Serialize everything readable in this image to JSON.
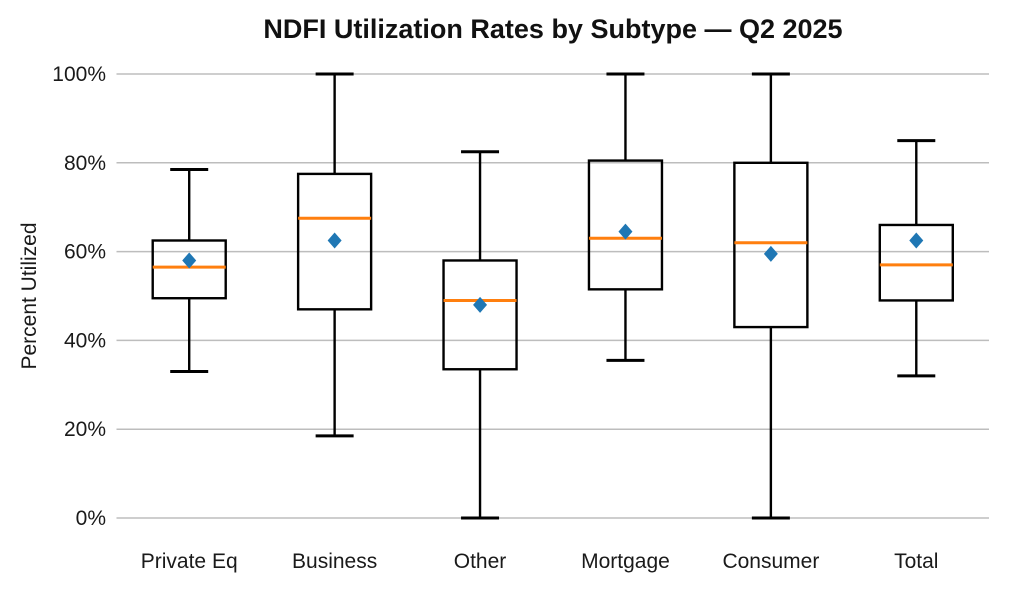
{
  "chart_data": {
    "type": "box",
    "title": "NDFI Utilization Rates by Subtype — Q2 2025",
    "xlabel": "",
    "ylabel": "Percent Utilized",
    "categories": [
      "Private Eq",
      "Business",
      "Other",
      "Mortgage",
      "Consumer",
      "Total"
    ],
    "series": [
      {
        "name": "Private Eq",
        "whisker_low": 33,
        "q1": 49.5,
        "median": 56.5,
        "mean": 58,
        "q3": 62.5,
        "whisker_high": 78.5
      },
      {
        "name": "Business",
        "whisker_low": 18.5,
        "q1": 47,
        "median": 67.5,
        "mean": 62.5,
        "q3": 77.5,
        "whisker_high": 100
      },
      {
        "name": "Other",
        "whisker_low": 0,
        "q1": 33.5,
        "median": 49,
        "mean": 48,
        "q3": 58,
        "whisker_high": 82.5
      },
      {
        "name": "Mortgage",
        "whisker_low": 35.5,
        "q1": 51.5,
        "median": 63,
        "mean": 64.5,
        "q3": 80.5,
        "whisker_high": 100
      },
      {
        "name": "Consumer",
        "whisker_low": 0,
        "q1": 43,
        "median": 62,
        "mean": 59.5,
        "q3": 80,
        "whisker_high": 100
      },
      {
        "name": "Total",
        "whisker_low": 32,
        "q1": 49,
        "median": 57,
        "mean": 62.5,
        "q3": 66,
        "whisker_high": 85
      }
    ],
    "ylim": [
      0,
      100
    ],
    "yticks": [
      {
        "value": 0,
        "label": "0%"
      },
      {
        "value": 20,
        "label": "20%"
      },
      {
        "value": 40,
        "label": "40%"
      },
      {
        "value": 60,
        "label": "60%"
      },
      {
        "value": 80,
        "label": "80%"
      },
      {
        "value": 100,
        "label": "100%"
      }
    ],
    "grid": "horizontal",
    "legend": "none",
    "markers": {
      "median": "orange horizontal line",
      "mean": "blue filled diamond"
    },
    "colors": {
      "median_line": "#ff7f0e",
      "mean_marker": "#1f77b4",
      "box_edge": "#000000",
      "whisker": "#000000",
      "gridline": "#bdbdbd",
      "background": "#ffffff",
      "text": "#1a1a1a"
    }
  }
}
